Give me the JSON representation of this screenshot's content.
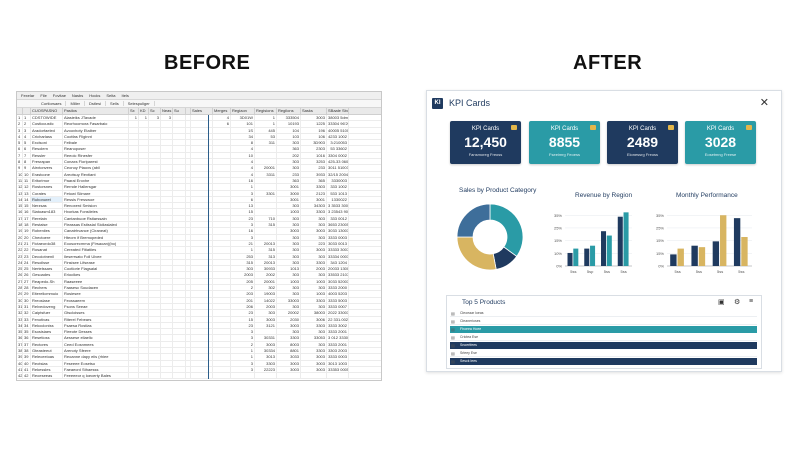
{
  "headings": {
    "before": "BEFORE",
    "after": "AFTER"
  },
  "spreadsheet": {
    "menu": [
      "Fexelar",
      "File",
      "Fovitae",
      "Nasbs",
      "Hocks",
      "Selta",
      "Itels"
    ],
    "tabs": [
      "Cortlorsaes",
      "Miller",
      "Dstlesi",
      "Sells",
      "Selespuliger"
    ],
    "left_headers": [
      "",
      "",
      "CUOSPASNO",
      "Pasilos",
      "Sx",
      "KD",
      "Sc",
      "Neas",
      "Su"
    ],
    "right_headers": [
      "Sales",
      "Merges",
      "Regiaon",
      "Regisions",
      "Regilons",
      "Sasks",
      "SBaale Sbvison"
    ],
    "rows": [
      {
        "n": "1",
        "a": "1",
        "code": "CDSTOWIDE",
        "name": "Alasieiks JTavade",
        "d": "1",
        "e": "1",
        "f": "3",
        "g": "3",
        "h": "",
        "i": "",
        "j": "4",
        "k": "3D01W",
        "l": "1",
        "m": "333504",
        "n2": "3003",
        "o": "38003 5dmrl"
      },
      {
        "n": "2",
        "a": "2",
        "code": "Costiocustic",
        "name": "Reorhoomora Fasarbaio",
        "d": "",
        "e": "",
        "f": "",
        "g": "",
        "h": "",
        "i": "",
        "j": "6",
        "k": "101",
        "l": "1",
        "m": "10193",
        "n2": "1225",
        "o": "33304 96'20"
      },
      {
        "n": "3",
        "a": "3",
        "code": "Aradorfaeled",
        "name": "Avooxhoty Etaiber",
        "d": "",
        "e": "",
        "f": "",
        "g": "",
        "h": "",
        "i": "",
        "j": "",
        "k": "1S",
        "l": "445",
        "m": "104",
        "n2": "196",
        "o": "40005 51002"
      },
      {
        "n": "4",
        "a": "4",
        "code": "Cricharlass",
        "name": "Cootfas Fliginnt",
        "d": "",
        "e": "",
        "f": "",
        "g": "",
        "h": "",
        "i": "",
        "j": "",
        "k": "34",
        "l": "53",
        "m": "103",
        "n2": "106",
        "o": "4233 1002"
      },
      {
        "n": "5",
        "a": "5",
        "code": "Exclsoni",
        "name": "Felbale",
        "d": "",
        "e": "",
        "f": "",
        "g": "",
        "h": "",
        "i": "",
        "j": "",
        "k": "8",
        "l": "311",
        "m": "303",
        "n2": "3D903",
        "o": "3:210053"
      },
      {
        "n": "6",
        "a": "6",
        "code": "Resolern",
        "name": "Reanoposer",
        "d": "",
        "e": "",
        "f": "",
        "g": "",
        "h": "",
        "i": "",
        "j": "",
        "k": "4",
        "l": "",
        "m": "363",
        "n2": "2303",
        "o": "53 33602"
      },
      {
        "n": "7",
        "a": "7",
        "code": "Ressler",
        "name": "Reeoic Rinesfer",
        "d": "",
        "e": "",
        "f": "",
        "g": "",
        "h": "",
        "i": "",
        "j": "",
        "k": "10",
        "l": "",
        "m": "202",
        "n2": "1016",
        "o": "3304 0002"
      },
      {
        "n": "8",
        "a": "8",
        "code": "Fresrapan",
        "name": "Conaxs Floriparest",
        "d": "",
        "e": "",
        "f": "",
        "g": "",
        "h": "",
        "i": "",
        "j": "",
        "k": "4",
        "l": "",
        "m": "303",
        "n2": "3253",
        "o": "425-33 060"
      },
      {
        "n": "9",
        "a": "9",
        "code": "Atrxtonvers",
        "name": "Ceonoy Ptaoxs (abil",
        "d": "",
        "e": "",
        "f": "",
        "g": "",
        "h": "",
        "i": "",
        "j": "",
        "k": "4",
        "l": "20001",
        "m": "303",
        "n2": "233",
        "o": "3011 51003"
      },
      {
        "n": "10",
        "a": "10",
        "code": "Erastcone",
        "name": "Areotsuy Rextiant",
        "d": "",
        "e": "",
        "f": "",
        "g": "",
        "h": "",
        "i": "",
        "j": "",
        "k": "4",
        "l": "3311",
        "m": "233",
        "n2": "3933",
        "o": "32/15 2004"
      },
      {
        "n": "11",
        "a": "11",
        "code": "Eritorimor",
        "name": "Paaral Eroxhe",
        "d": "",
        "e": "",
        "f": "",
        "g": "",
        "h": "",
        "i": "",
        "j": "",
        "k": "16",
        "l": "",
        "m": "363",
        "n2": "365",
        "o": "3330003"
      },
      {
        "n": "12",
        "a": "12",
        "code": "Rostorsnes",
        "name": "Rernde Hallersgar",
        "d": "",
        "e": "",
        "f": "",
        "g": "",
        "h": "",
        "i": "",
        "j": "",
        "k": "1",
        "l": "",
        "m": "3001",
        "n2": "3303",
        "o": "333 1002"
      },
      {
        "n": "13",
        "a": "13",
        "code": "Corates",
        "name": "Fetowi Siimare",
        "d": "",
        "e": "",
        "f": "",
        "g": "",
        "h": "",
        "i": "",
        "j": "",
        "k": "3",
        "l": "3301",
        "m": "3000",
        "n2": "2123",
        "o": "533 1013"
      },
      {
        "n": "14",
        "a": "14",
        "code": "Rubonuret",
        "name": "Ressis Fresswoe",
        "d": "",
        "e": "",
        "f": "",
        "g": "",
        "h": "",
        "i": "",
        "j": "",
        "k": "6",
        "l": "",
        "m": "3001",
        "n2": "3001",
        "o": "1330022"
      },
      {
        "n": "15",
        "a": "15",
        "code": "Nerzsas",
        "name": "Renoxerd Smision",
        "d": "",
        "e": "",
        "f": "",
        "g": "",
        "h": "",
        "i": "",
        "j": "",
        "k": "13",
        "l": "",
        "m": "303",
        "n2": "34303",
        "o": "3 3533 3002"
      },
      {
        "n": "16",
        "a": "16",
        "code": "Siatoasm183",
        "name": "Hxorkas Fonsileles",
        "d": "",
        "e": "",
        "f": "",
        "g": "",
        "h": "",
        "i": "",
        "j": "",
        "k": "15",
        "l": "",
        "m": "1003",
        "n2": "3303",
        "o": "3 23543 9004"
      },
      {
        "n": "17",
        "a": "17",
        "code": "Rerelain",
        "name": "Cantanbuoe Rstiarssain",
        "d": "",
        "e": "",
        "f": "",
        "g": "",
        "h": "",
        "i": "",
        "j": "",
        "k": "23",
        "l": "710",
        "m": "303",
        "n2": "303",
        "o": "333 0012"
      },
      {
        "n": "18",
        "a": "18",
        "code": "Restaise",
        "name": "Fleassas Estissial Sicliaslaled",
        "d": "",
        "e": "",
        "f": "",
        "g": "",
        "h": "",
        "i": "",
        "j": "",
        "k": "3",
        "l": "315",
        "m": "303",
        "n2": "303",
        "o": "3653 23005"
      },
      {
        "n": "19",
        "a": "19",
        "code": "Robeniies",
        "name": "Canatrhvance (Ciraneat)",
        "d": "",
        "e": "",
        "f": "",
        "g": "",
        "h": "",
        "i": "",
        "j": "",
        "k": "16",
        "l": "",
        "m": "3003",
        "n2": "3003",
        "o": "3033 13003"
      },
      {
        "n": "20",
        "a": "20",
        "code": "Chectoere",
        "name": "Hteorn if Bremopeded",
        "d": "",
        "e": "",
        "f": "",
        "g": "",
        "h": "",
        "i": "",
        "j": "",
        "k": "3",
        "l": "",
        "m": "303",
        "n2": "303",
        "o": "3333 0003"
      },
      {
        "n": "21",
        "a": "21",
        "code": "Fictaeordo38",
        "name": "Eoosorecmma (Firsaoan)(bo)",
        "d": "",
        "e": "",
        "f": "",
        "g": "",
        "h": "",
        "i": "",
        "j": "",
        "k": "21",
        "l": "20013",
        "m": "303",
        "n2": "223",
        "o": "3033 0013"
      },
      {
        "n": "22",
        "a": "22",
        "code": "Rosanat",
        "name": "Cereated Fitiatiies",
        "d": "",
        "e": "",
        "f": "",
        "g": "",
        "h": "",
        "i": "",
        "j": "",
        "k": "1",
        "l": "315",
        "m": "303",
        "n2": "3003",
        "o": "33333 3007"
      },
      {
        "n": "23",
        "a": "23",
        "code": "Decoiotnenil",
        "name": "Ileserrsato Foll Ulvee",
        "d": "",
        "e": "",
        "f": "",
        "g": "",
        "h": "",
        "i": "",
        "j": "",
        "k": "253",
        "l": "313",
        "m": "303",
        "n2": "303",
        "o": "33334 0003"
      },
      {
        "n": "24",
        "a": "24",
        "code": "Resoilsse",
        "name": "Finsisee Lifsease",
        "d": "",
        "e": "",
        "f": "",
        "g": "",
        "h": "",
        "i": "",
        "j": "",
        "k": "315",
        "l": "20013",
        "m": "303",
        "n2": "3303",
        "o": "343 1204"
      },
      {
        "n": "25",
        "a": "25",
        "code": "Nertelssars",
        "name": "Cootlorie Flagsaial",
        "d": "",
        "e": "",
        "f": "",
        "g": "",
        "h": "",
        "i": "",
        "j": "",
        "k": "303",
        "l": "30933",
        "m": "1013",
        "n2": "2003",
        "o": "20033 13004"
      },
      {
        "n": "26",
        "a": "26",
        "code": "Gesoades",
        "name": "Eriocikes",
        "d": "",
        "e": "",
        "f": "",
        "g": "",
        "h": "",
        "i": "",
        "j": "",
        "k": "2003",
        "l": "2002",
        "m": "303",
        "n2": "303",
        "o": "33533 2107"
      },
      {
        "n": "27",
        "a": "27",
        "code": "Reapedo-Sh",
        "name": "Raaseeee",
        "d": "",
        "e": "",
        "f": "",
        "g": "",
        "h": "",
        "i": "",
        "j": "",
        "k": "205",
        "l": "20001",
        "m": "1003",
        "n2": "1003",
        "o": "3033 52003"
      },
      {
        "n": "28",
        "a": "28",
        "code": "Rechers",
        "name": "Faasesc Soudacen",
        "d": "",
        "e": "",
        "f": "",
        "g": "",
        "h": "",
        "i": "",
        "j": "",
        "k": "2",
        "l": "302",
        "m": "303",
        "n2": "303",
        "o": "3333 2000"
      },
      {
        "n": "29",
        "a": "29",
        "code": "Eiterelicmmuio",
        "name": "Rosiesee",
        "d": "",
        "e": "",
        "f": "",
        "g": "",
        "h": "",
        "i": "",
        "j": "",
        "k": "203",
        "l": "19003",
        "m": "303",
        "n2": "1003",
        "o": "4003 5203"
      },
      {
        "n": "30",
        "a": "30",
        "code": "Rreoslase",
        "name": "Feossaeem",
        "d": "",
        "e": "",
        "f": "",
        "g": "",
        "h": "",
        "i": "",
        "j": "",
        "k": "201",
        "l": "14022",
        "m": "33003",
        "n2": "3303",
        "o": "3333 5003"
      },
      {
        "n": "31",
        "a": "31",
        "code": "Relvedoveng",
        "name": "Fsons Seeae",
        "d": "",
        "e": "",
        "f": "",
        "g": "",
        "h": "",
        "i": "",
        "j": "",
        "k": "206",
        "l": "2003",
        "m": "303",
        "n2": "303",
        "o": "3333 0007"
      },
      {
        "n": "32",
        "a": "32",
        "code": "Caiptsfuer",
        "name": "Gtscloisses",
        "d": "",
        "e": "",
        "f": "",
        "g": "",
        "h": "",
        "i": "",
        "j": "",
        "k": "23",
        "l": "303",
        "m": "20002",
        "n2": "38003",
        "o": "2022 33003"
      },
      {
        "n": "33",
        "a": "33",
        "code": "Fenotivas",
        "name": "Riterel Febears",
        "d": "",
        "e": "",
        "f": "",
        "g": "",
        "h": "",
        "i": "",
        "j": "",
        "k": "15",
        "l": "3003",
        "m": "2030",
        "n2": "3006",
        "o": "22 331.0022"
      },
      {
        "n": "34",
        "a": "34",
        "code": "Rekocloniss",
        "name": "Fsaesa Rostlas",
        "d": "",
        "e": "",
        "f": "",
        "g": "",
        "h": "",
        "i": "",
        "j": "",
        "k": "23",
        "l": "3121",
        "m": "3003",
        "n2": "3303",
        "o": "3333 3002"
      },
      {
        "n": "35",
        "a": "35",
        "code": "Esosisiaes",
        "name": "Fleeote Desses",
        "d": "",
        "e": "",
        "f": "",
        "g": "",
        "h": "",
        "i": "",
        "j": "",
        "k": "3",
        "l": "",
        "m": "303",
        "n2": "303",
        "o": "3333 2001"
      },
      {
        "n": "36",
        "a": "36",
        "code": "Resetioss",
        "name": "Aessese eliaelic",
        "d": "",
        "e": "",
        "f": "",
        "g": "",
        "h": "",
        "i": "",
        "j": "",
        "k": "3",
        "l": "30331",
        "m": "3303",
        "n2": "33053",
        "o": "3 012 333000"
      },
      {
        "n": "37",
        "a": "37",
        "code": "Rectores",
        "name": "Ceed Eosnmees",
        "d": "",
        "e": "",
        "f": "",
        "g": "",
        "h": "",
        "i": "",
        "j": "",
        "k": "2",
        "l": "3003",
        "m": "8003",
        "n2": "303",
        "o": "3333 2001"
      },
      {
        "n": "38",
        "a": "38",
        "code": "Gteasteeut",
        "name": "Arenoty Sfeere",
        "d": "",
        "e": "",
        "f": "",
        "g": "",
        "h": "",
        "i": "",
        "j": "",
        "k": "1",
        "l": "30334",
        "m": "8801",
        "n2": "3303",
        "o": "3303 2003"
      },
      {
        "n": "39",
        "a": "39",
        "code": "Releceeioas",
        "name": "Reoanne dapy eiis (rhiee",
        "d": "",
        "e": "",
        "f": "",
        "g": "",
        "h": "",
        "i": "",
        "j": "",
        "k": "1",
        "l": "3013",
        "m": "3033",
        "n2": "3003",
        "o": "3333 0003"
      },
      {
        "n": "40",
        "a": "40",
        "code": "Reotsias",
        "name": "Feseeee Eosetso",
        "d": "",
        "e": "",
        "f": "",
        "g": "",
        "h": "",
        "i": "",
        "j": "",
        "k": "3",
        "l": "3303",
        "m": "3003",
        "n2": "3003",
        "o": "3013 1003"
      },
      {
        "n": "41",
        "a": "41",
        "code": "Rekessles",
        "name": "Faeaecrd Sthaesss",
        "d": "",
        "e": "",
        "f": "",
        "g": "",
        "h": "",
        "i": "",
        "j": "",
        "k": "3",
        "l": "22223",
        "m": "3003",
        "n2": "3003",
        "o": "33353 0005"
      },
      {
        "n": "42",
        "a": "42",
        "code": "Reoeseeas",
        "name": "Feeeeeor q Ioecerty Bales",
        "d": "",
        "e": "",
        "f": "",
        "g": "",
        "h": "",
        "i": "",
        "j": "",
        "k": "",
        "l": "",
        "m": "",
        "n2": "",
        "o": ""
      }
    ]
  },
  "dashboard": {
    "logo": "KI",
    "title": "KPI Cards",
    "kpis": [
      {
        "label": "KPI Cards",
        "value": "12,450",
        "sub": "Fansmoreg Freoss",
        "color": "#1f3a5f"
      },
      {
        "label": "KPI Cards",
        "value": "8855",
        "sub": "Fseeimrg Feoess",
        "color": "#2a9ba6"
      },
      {
        "label": "KPI Cards",
        "value": "2489",
        "sub": "Eionessrg Freoss",
        "color": "#1f3a5f"
      },
      {
        "label": "KPI Cards",
        "value": "3028",
        "sub": "Eosetmng Freese",
        "color": "#2a9ba6"
      }
    ],
    "colors": {
      "navy": "#1f3a5f",
      "teal": "#2a9ba6",
      "gold": "#d8b561",
      "blue": "#3e6e9a"
    }
  },
  "chart_data": [
    {
      "type": "pie",
      "title": "Sales by Product Category",
      "categories": [
        "",
        "",
        "",
        ""
      ],
      "values": [
        35,
        12,
        28,
        25
      ],
      "colors": [
        "#2a9ba6",
        "#1f3a5f",
        "#d8b561",
        "#3e6e9a"
      ]
    },
    {
      "type": "bar",
      "title": "Revenue by Region",
      "categories": [
        "5ss",
        "5sp",
        "5ss",
        "5ss"
      ],
      "series": [
        {
          "name": "",
          "values": [
            9,
            12,
            24,
            34
          ],
          "color": "#1f3a5f"
        },
        {
          "name": "",
          "values": [
            12,
            14,
            21,
            37
          ],
          "color": "#2a9ba6"
        }
      ],
      "yticks": [
        "0%",
        "10%",
        "15%",
        "25%",
        "35%"
      ],
      "ylim": [
        0,
        40
      ]
    },
    {
      "type": "bar",
      "title": "Monthly Performance",
      "categories": [
        "5ss",
        "5ss",
        "5ss",
        "5ss"
      ],
      "series": [
        {
          "name": "",
          "values": [
            8,
            14,
            17,
            33
          ],
          "color": "#1f3a5f"
        },
        {
          "name": "",
          "values": [
            12,
            13,
            35,
            20
          ],
          "color": "#d8b561"
        }
      ],
      "yticks": [
        "0%",
        "15%",
        "15%",
        "25%",
        "35%"
      ],
      "ylim": [
        0,
        40
      ]
    }
  ],
  "products_panel": {
    "title": "Top 5 Products",
    "rows": [
      {
        "name": "Cleoeaar loeas",
        "style": "plain"
      },
      {
        "name": "Cleanerioses",
        "style": "plain"
      },
      {
        "name": "Fhoeea Hoee",
        "style": "teal"
      },
      {
        "name": "Crictea Ese",
        "style": "plain"
      },
      {
        "name": "Snoertfees",
        "style": "navy"
      },
      {
        "name": "Srleey Ese",
        "style": "plain"
      },
      {
        "name": "Sesck lees",
        "style": "navy"
      }
    ]
  }
}
